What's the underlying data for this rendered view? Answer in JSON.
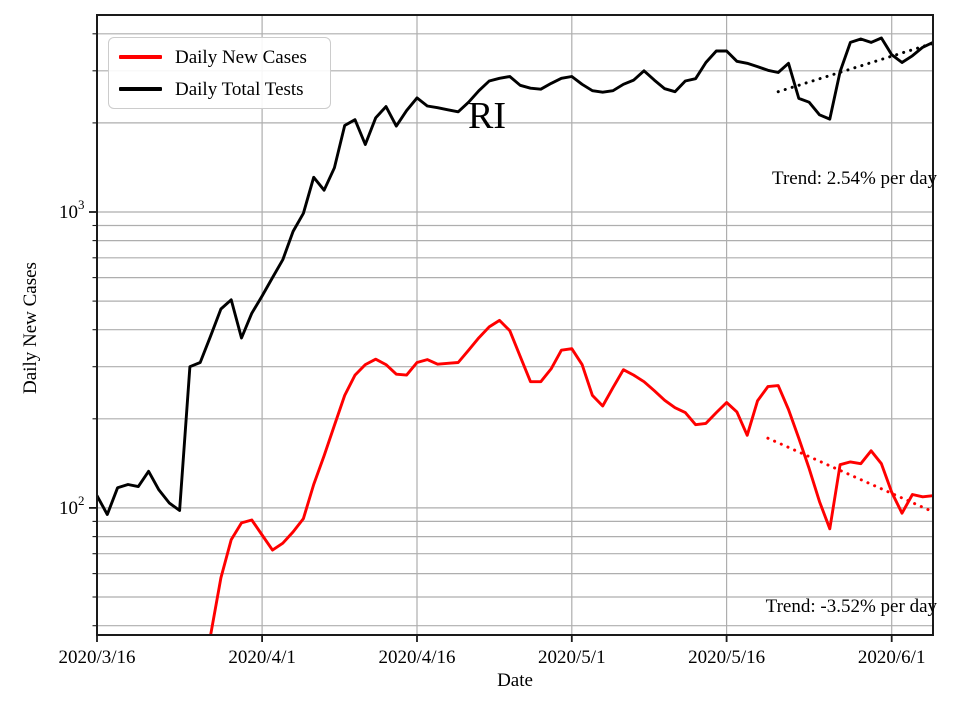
{
  "colors": {
    "cases": "#ff0000",
    "tests": "#000000",
    "grid": "#aeaeae",
    "spine": "#1a1a1a",
    "background": "#ffffff",
    "legend_border": "#cccccc",
    "text": "#000000"
  },
  "legend": {
    "items": [
      {
        "label": "Daily New Cases",
        "color": "#ff0000"
      },
      {
        "label": "Daily Total Tests",
        "color": "#000000"
      }
    ]
  },
  "chart_data": {
    "type": "line",
    "yscale": "log",
    "annotation": "RI",
    "xlabel": "Date",
    "ylabel": "Daily New Cases",
    "x_unit": "days since 2020/3/16",
    "x_range": [
      0,
      81
    ],
    "ylim": [
      37.2,
      4630
    ],
    "grid": true,
    "legend_position": "upper left",
    "x_ticks": [
      {
        "day": 0,
        "label": "2020/3/16"
      },
      {
        "day": 16,
        "label": "2020/4/1"
      },
      {
        "day": 31,
        "label": "2020/4/16"
      },
      {
        "day": 46,
        "label": "2020/5/1"
      },
      {
        "day": 61,
        "label": "2020/5/16"
      },
      {
        "day": 77,
        "label": "2020/6/1"
      }
    ],
    "y_major_ticks": [
      {
        "value": 100,
        "base": "10",
        "exp": "2"
      },
      {
        "value": 1000,
        "base": "10",
        "exp": "3"
      }
    ],
    "y_grid_values": [
      40,
      50,
      60,
      70,
      80,
      90,
      100,
      200,
      300,
      400,
      500,
      600,
      700,
      800,
      900,
      1000,
      2000,
      3000,
      4000
    ],
    "series": [
      {
        "name": "Daily Total Tests",
        "color": "#000000",
        "start_day": 0,
        "start_date": "2020/3/16",
        "values": [
          110,
          95,
          117,
          120,
          118,
          133,
          115,
          104,
          98,
          300,
          310,
          380,
          470,
          505,
          375,
          455,
          520,
          600,
          690,
          860,
          990,
          1310,
          1185,
          1410,
          1960,
          2050,
          1690,
          2080,
          2270,
          1950,
          2200,
          2430,
          2280,
          2250,
          2215,
          2180,
          2350,
          2570,
          2770,
          2830,
          2870,
          2680,
          2620,
          2600,
          2720,
          2830,
          2870,
          2700,
          2570,
          2540,
          2570,
          2700,
          2790,
          3000,
          2790,
          2610,
          2550,
          2770,
          2820,
          3200,
          3500,
          3500,
          3230,
          3180,
          3100,
          3010,
          2960,
          3180,
          2420,
          2350,
          2130,
          2060,
          2980,
          3740,
          3840,
          3740,
          3870,
          3400,
          3200,
          3370,
          3600,
          3740
        ]
      },
      {
        "name": "Daily New Cases",
        "color": "#ff0000",
        "start_day": 11,
        "start_date": "2020/3/27",
        "values": [
          37,
          58,
          78,
          89,
          91,
          81,
          72,
          76,
          83,
          92,
          120,
          150,
          190,
          240,
          281,
          305,
          318,
          305,
          283,
          281,
          310,
          317,
          306,
          308,
          310,
          341,
          376,
          409,
          430,
          397,
          325,
          267,
          267,
          295,
          341,
          345,
          305,
          240,
          221,
          255,
          293,
          281,
          267,
          249,
          231,
          218,
          210,
          191,
          193,
          210,
          227,
          211,
          176,
          230,
          257,
          259,
          215,
          172,
          136,
          105,
          85,
          140,
          143,
          141,
          156,
          141,
          113,
          96,
          111,
          109,
          110
        ]
      }
    ],
    "trendlines": [
      {
        "series": "Daily Total Tests",
        "label": "Trend: 2.54% per day",
        "rate_percent_per_day": 2.54,
        "color": "#000000",
        "start_day": 66,
        "start_value": 2550,
        "end_day": 81,
        "end_value": 3715
      },
      {
        "series": "Daily New Cases",
        "label": "Trend: -3.52% per day",
        "rate_percent_per_day": -3.52,
        "color": "#ff0000",
        "start_day": 65,
        "start_value": 172,
        "end_day": 81,
        "end_value": 97
      }
    ]
  }
}
